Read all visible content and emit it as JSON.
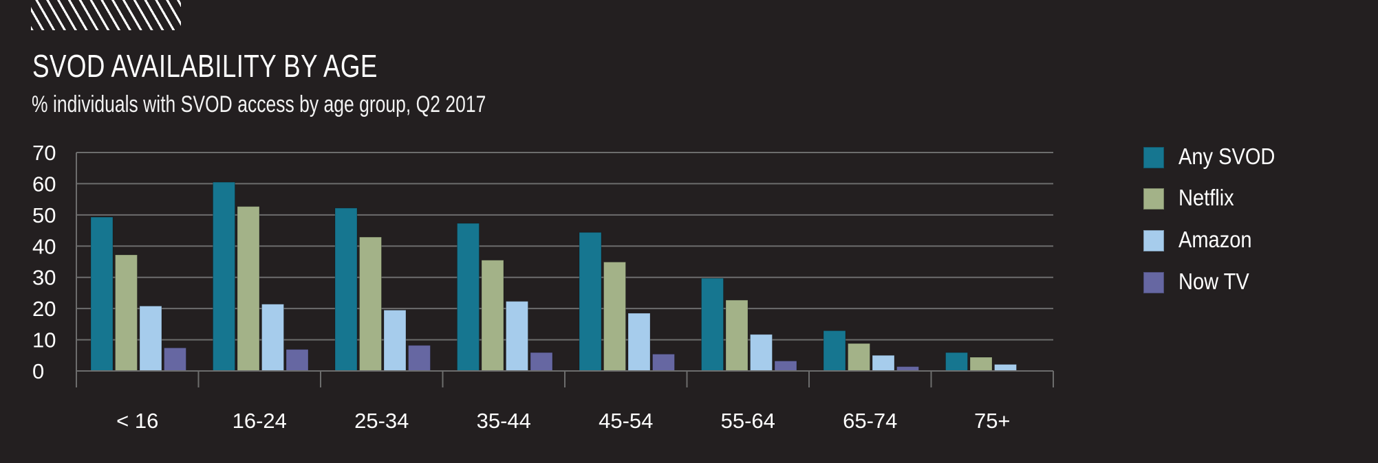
{
  "header": {
    "decoration": "hatch-pattern",
    "title": "SVOD AVAILABILITY BY AGE",
    "subtitle": "% individuals with SVOD access by age group, Q2 2017"
  },
  "chart_data": {
    "type": "bar",
    "title": "SVOD AVAILABILITY BY AGE",
    "subtitle": "% individuals with SVOD access by age group, Q2 2017",
    "xlabel": "",
    "ylabel": "",
    "ylim": [
      0,
      70
    ],
    "yticks": [
      0,
      10,
      20,
      30,
      40,
      50,
      60,
      70
    ],
    "grid": true,
    "legend_position": "right",
    "categories": [
      "< 16",
      "16-24",
      "25-34",
      "35-44",
      "45-54",
      "55-64",
      "65-74",
      "75+"
    ],
    "series": [
      {
        "name": "Any SVOD",
        "color": "#167690",
        "values": [
          49.3,
          60.5,
          52.2,
          47.3,
          44.4,
          29.7,
          12.9,
          5.9
        ]
      },
      {
        "name": "Netflix",
        "color": "#a3b288",
        "values": [
          37.2,
          52.7,
          42.9,
          35.5,
          34.9,
          22.7,
          8.8,
          4.4
        ]
      },
      {
        "name": "Amazon",
        "color": "#a6ccec",
        "values": [
          20.8,
          21.4,
          19.5,
          22.3,
          18.5,
          11.7,
          5.0,
          2.1
        ]
      },
      {
        "name": "Now TV",
        "color": "#6667a2",
        "values": [
          7.4,
          6.9,
          8.2,
          5.9,
          5.4,
          3.2,
          1.4,
          0
        ]
      }
    ]
  },
  "colors": {
    "background": "#231f20",
    "gridline": "#6d6d6d",
    "text": "#ffffff"
  }
}
